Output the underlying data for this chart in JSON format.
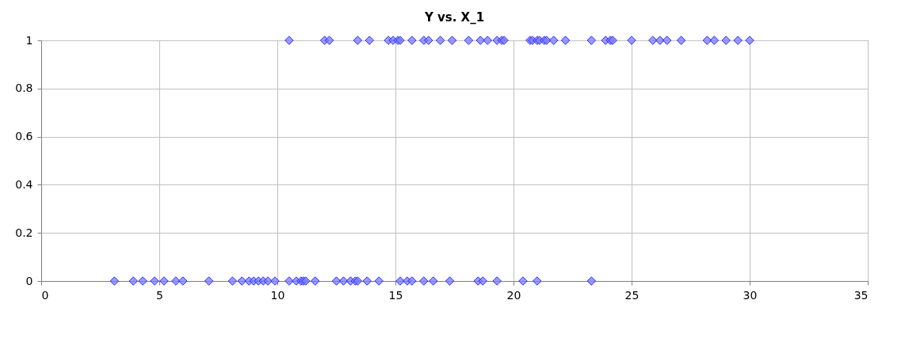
{
  "chart_data": {
    "type": "scatter",
    "title": "Y vs. X_1",
    "marker": "diamond",
    "grid": true,
    "xlim": [
      0,
      35
    ],
    "xticks": [
      0,
      5,
      10,
      15,
      20,
      25,
      30,
      35
    ],
    "ylim": [
      0,
      1
    ],
    "yticks": [
      0,
      0.2,
      0.4,
      0.6,
      0.8,
      1
    ],
    "series": [
      {
        "color": "#7b7bff",
        "x": [
          10.5,
          12.0,
          12.2,
          13.4,
          13.9,
          14.7,
          14.9,
          15.1,
          15.2,
          15.7,
          16.2,
          16.4,
          16.9,
          17.4,
          18.1,
          18.6,
          18.9,
          19.3,
          19.5,
          19.6,
          20.7,
          20.8,
          21.0,
          21.1,
          21.3,
          21.4,
          21.7,
          22.2,
          23.3,
          23.9,
          24.1,
          24.2,
          25.0,
          25.9,
          26.2,
          26.5,
          27.1,
          28.2,
          28.5,
          29.0,
          29.5,
          30.0,
          3.1,
          3.9,
          4.3,
          4.8,
          5.2,
          5.7,
          6.0,
          7.1,
          8.1,
          8.5,
          8.8,
          9.0,
          9.2,
          9.4,
          9.6,
          9.9,
          10.5,
          10.8,
          11.0,
          11.1,
          11.2,
          11.6,
          12.5,
          12.8,
          13.1,
          13.3,
          13.4,
          13.8,
          14.3,
          15.2,
          15.5,
          15.7,
          16.2,
          16.6,
          17.3,
          18.5,
          18.7,
          19.3,
          20.4,
          21.0,
          23.3
        ],
        "values": [
          1,
          1,
          1,
          1,
          1,
          1,
          1,
          1,
          1,
          1,
          1,
          1,
          1,
          1,
          1,
          1,
          1,
          1,
          1,
          1,
          1,
          1,
          1,
          1,
          1,
          1,
          1,
          1,
          1,
          1,
          1,
          1,
          1,
          1,
          1,
          1,
          1,
          1,
          1,
          1,
          1,
          1,
          0,
          0,
          0,
          0,
          0,
          0,
          0,
          0,
          0,
          0,
          0,
          0,
          0,
          0,
          0,
          0,
          0,
          0,
          0,
          0,
          0,
          0,
          0,
          0,
          0,
          0,
          0,
          0,
          0,
          0,
          0,
          0,
          0,
          0,
          0,
          0,
          0,
          0,
          0,
          0,
          0
        ]
      }
    ]
  }
}
